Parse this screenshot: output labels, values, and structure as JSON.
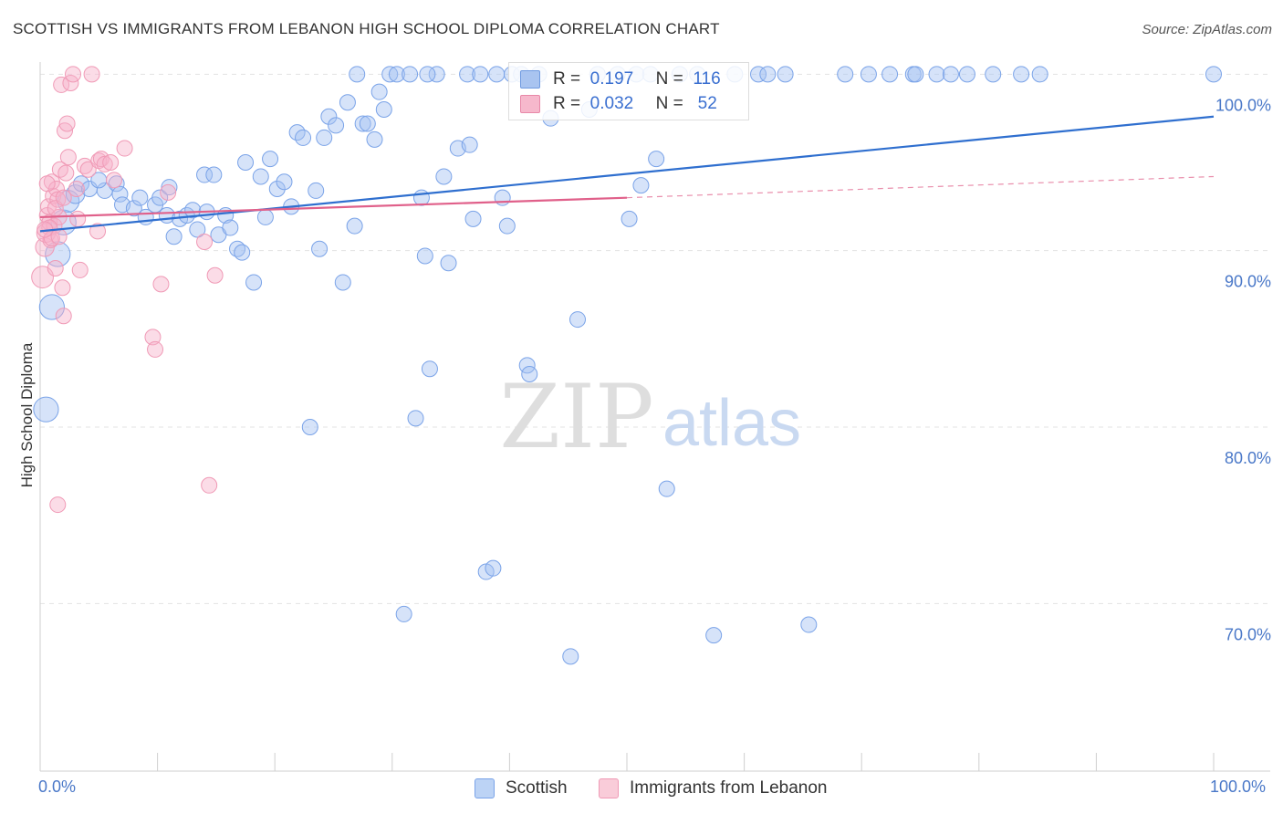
{
  "title": "SCOTTISH VS IMMIGRANTS FROM LEBANON HIGH SCHOOL DIPLOMA CORRELATION CHART",
  "source": "Source: ZipAtlas.com",
  "watermark": {
    "zip": "ZIP",
    "atlas": "atlas"
  },
  "legend": {
    "r_label": "R =",
    "n_label": "N =",
    "rows": [
      {
        "r": "0.197",
        "n": "116",
        "fill": "#a9c4f0",
        "stroke": "#6f9ae0"
      },
      {
        "r": "0.032",
        "n": "52",
        "fill": "#f6b8cc",
        "stroke": "#e888a8"
      }
    ]
  },
  "colors": {
    "scottish": "#7aa3e8",
    "scottish_line": "#2f6fcf",
    "lebanon": "#f09ab6",
    "lebanon_line": "#e0608a",
    "axis_label": "#4a78c8"
  },
  "chart_data": {
    "type": "scatter",
    "title": "SCOTTISH VS IMMIGRANTS FROM LEBANON HIGH SCHOOL DIPLOMA CORRELATION CHART",
    "xlabel": "",
    "ylabel": "High School Diploma",
    "xlim": [
      0,
      100
    ],
    "ylim": [
      60.5,
      101
    ],
    "x_ticks": [
      "0.0%",
      "100.0%"
    ],
    "y_ticks": [
      {
        "value": 100,
        "label": "100.0%"
      },
      {
        "value": 90,
        "label": "90.0%"
      },
      {
        "value": 80,
        "label": "80.0%"
      },
      {
        "value": 70,
        "label": "70.0%"
      }
    ],
    "grid": true,
    "legend_position": "top-center",
    "series": [
      {
        "name": "Scottish",
        "r": 0.197,
        "n": 116,
        "trend": {
          "x": [
            0,
            100
          ],
          "y": [
            91.1,
            97.6
          ]
        },
        "points": [
          [
            0.5,
            81.0,
            16
          ],
          [
            1.0,
            86.8,
            16
          ],
          [
            1.5,
            89.8,
            16
          ],
          [
            2.0,
            91.6,
            16
          ],
          [
            2.4,
            92.8,
            14
          ],
          [
            3.0,
            93.2,
            12
          ],
          [
            3.5,
            93.8,
            10
          ],
          [
            4.2,
            93.5,
            10
          ],
          [
            5.5,
            93.4,
            10
          ],
          [
            5.0,
            94.0,
            10
          ],
          [
            6.5,
            93.8,
            10
          ],
          [
            6.8,
            93.2,
            10
          ],
          [
            7.0,
            92.6,
            10
          ],
          [
            8.0,
            92.4,
            10
          ],
          [
            8.5,
            93.0,
            10
          ],
          [
            9.0,
            91.9,
            10
          ],
          [
            9.8,
            92.6,
            10
          ],
          [
            10.2,
            93.0,
            10
          ],
          [
            10.8,
            92.0,
            10
          ],
          [
            11.0,
            93.6,
            10
          ],
          [
            11.4,
            90.8,
            10
          ],
          [
            11.9,
            91.8,
            10
          ],
          [
            12.5,
            92.0,
            10
          ],
          [
            13.0,
            92.3,
            10
          ],
          [
            13.4,
            91.2,
            10
          ],
          [
            14.0,
            94.3,
            10
          ],
          [
            14.2,
            92.2,
            10
          ],
          [
            14.8,
            94.3,
            10
          ],
          [
            15.2,
            90.9,
            10
          ],
          [
            15.8,
            92.0,
            10
          ],
          [
            16.2,
            91.3,
            10
          ],
          [
            16.8,
            90.1,
            10
          ],
          [
            17.2,
            89.9,
            10
          ],
          [
            17.5,
            95.0,
            10
          ],
          [
            18.2,
            88.2,
            10
          ],
          [
            18.8,
            94.2,
            10
          ],
          [
            19.2,
            91.9,
            10
          ],
          [
            19.6,
            95.2,
            10
          ],
          [
            20.2,
            93.5,
            10
          ],
          [
            20.8,
            93.9,
            10
          ],
          [
            21.4,
            92.5,
            10
          ],
          [
            21.9,
            96.7,
            10
          ],
          [
            22.4,
            96.4,
            10
          ],
          [
            23.0,
            80.0,
            10
          ],
          [
            23.5,
            93.4,
            10
          ],
          [
            23.8,
            90.1,
            10
          ],
          [
            24.2,
            96.4,
            10
          ],
          [
            24.6,
            97.6,
            10
          ],
          [
            25.2,
            97.1,
            10
          ],
          [
            25.8,
            88.2,
            10
          ],
          [
            26.2,
            98.4,
            10
          ],
          [
            26.8,
            91.4,
            10
          ],
          [
            27.5,
            97.2,
            10
          ],
          [
            27.9,
            97.2,
            10
          ],
          [
            28.5,
            96.3,
            10
          ],
          [
            28.9,
            99.0,
            10
          ],
          [
            29.3,
            98.0,
            10
          ],
          [
            29.8,
            100.0,
            10
          ],
          [
            30.4,
            100.0,
            10
          ],
          [
            31.0,
            69.4,
            10
          ],
          [
            31.5,
            100.0,
            10
          ],
          [
            32.0,
            80.5,
            10
          ],
          [
            32.5,
            93.0,
            10
          ],
          [
            32.8,
            89.7,
            10
          ],
          [
            33.2,
            83.3,
            10
          ],
          [
            33.8,
            100.0,
            10
          ],
          [
            34.4,
            94.2,
            10
          ],
          [
            34.8,
            89.3,
            10
          ],
          [
            35.6,
            95.8,
            10
          ],
          [
            36.4,
            100.0,
            10
          ],
          [
            36.6,
            96.0,
            10
          ],
          [
            36.9,
            91.8,
            10
          ],
          [
            37.5,
            100.0,
            10
          ],
          [
            38.0,
            71.8,
            10
          ],
          [
            38.6,
            72.0,
            10
          ],
          [
            38.9,
            100.0,
            10
          ],
          [
            39.4,
            93.0,
            10
          ],
          [
            39.8,
            91.4,
            10
          ],
          [
            40.2,
            100.0,
            10
          ],
          [
            41.0,
            100.0,
            10
          ],
          [
            41.5,
            83.5,
            10
          ],
          [
            41.7,
            83.0,
            10
          ],
          [
            42.5,
            100.0,
            10
          ],
          [
            43.5,
            97.5,
            10
          ],
          [
            45.2,
            67.0,
            10
          ],
          [
            45.8,
            86.1,
            10
          ],
          [
            46.8,
            98.0,
            10
          ],
          [
            47.5,
            100.0,
            10
          ],
          [
            49.2,
            100.0,
            10
          ],
          [
            50.2,
            91.8,
            10
          ],
          [
            50.8,
            100.0,
            10
          ],
          [
            51.2,
            93.7,
            10
          ],
          [
            52.0,
            100.0,
            10
          ],
          [
            52.5,
            95.2,
            10
          ],
          [
            53.4,
            76.5,
            10
          ],
          [
            54.5,
            100.0,
            10
          ],
          [
            56.0,
            100.0,
            10
          ],
          [
            57.4,
            68.2,
            10
          ],
          [
            59.2,
            100.0,
            10
          ],
          [
            61.2,
            100.0,
            10
          ],
          [
            62.0,
            100.0,
            10
          ],
          [
            63.5,
            100.0,
            10
          ],
          [
            65.5,
            68.8,
            10
          ],
          [
            68.6,
            100.0,
            10
          ],
          [
            70.6,
            100.0,
            10
          ],
          [
            72.4,
            100.0,
            10
          ],
          [
            74.4,
            100.0,
            10
          ],
          [
            74.6,
            100.0,
            10
          ],
          [
            76.4,
            100.0,
            10
          ],
          [
            77.6,
            100.0,
            10
          ],
          [
            79.0,
            100.0,
            10
          ],
          [
            81.2,
            100.0,
            10
          ],
          [
            83.6,
            100.0,
            10
          ],
          [
            85.2,
            100.0,
            10
          ],
          [
            100.0,
            100.0,
            10
          ],
          [
            27.0,
            100.0,
            10
          ],
          [
            33.0,
            100.0,
            10
          ]
        ]
      },
      {
        "name": "Immigrants from Lebanon",
        "r": 0.032,
        "n": 52,
        "trend": {
          "x": [
            0,
            50
          ],
          "y": [
            91.9,
            93.0
          ]
        },
        "trend_extension": {
          "x": [
            50,
            100
          ],
          "y": [
            93.0,
            94.2
          ]
        },
        "points": [
          [
            0.2,
            88.5,
            14
          ],
          [
            0.4,
            90.2,
            12
          ],
          [
            0.5,
            91.0,
            12
          ],
          [
            0.6,
            92.0,
            10
          ],
          [
            0.7,
            92.5,
            10
          ],
          [
            0.8,
            91.6,
            10
          ],
          [
            0.9,
            90.6,
            10
          ],
          [
            1.0,
            93.9,
            10
          ],
          [
            1.1,
            93.1,
            10
          ],
          [
            1.2,
            91.4,
            10
          ],
          [
            1.3,
            89.0,
            10
          ],
          [
            1.4,
            93.5,
            10
          ],
          [
            1.5,
            92.9,
            10
          ],
          [
            1.6,
            91.9,
            10
          ],
          [
            1.7,
            94.6,
            10
          ],
          [
            1.8,
            99.4,
            10
          ],
          [
            1.9,
            87.9,
            10
          ],
          [
            2.0,
            86.3,
            10
          ],
          [
            2.1,
            96.8,
            10
          ],
          [
            2.2,
            94.4,
            10
          ],
          [
            2.3,
            97.2,
            10
          ],
          [
            2.4,
            95.3,
            10
          ],
          [
            2.6,
            99.5,
            10
          ],
          [
            2.8,
            100.0,
            10
          ],
          [
            3.1,
            93.5,
            10
          ],
          [
            3.2,
            91.8,
            10
          ],
          [
            3.4,
            88.9,
            10
          ],
          [
            3.8,
            94.8,
            10
          ],
          [
            4.1,
            94.6,
            10
          ],
          [
            4.4,
            100.0,
            10
          ],
          [
            4.9,
            91.1,
            10
          ],
          [
            5.0,
            95.1,
            10
          ],
          [
            5.2,
            95.2,
            10
          ],
          [
            5.5,
            94.9,
            10
          ],
          [
            6.0,
            95.0,
            10
          ],
          [
            6.3,
            94.0,
            10
          ],
          [
            7.2,
            95.8,
            10
          ],
          [
            9.6,
            85.1,
            10
          ],
          [
            9.8,
            84.4,
            10
          ],
          [
            10.3,
            88.1,
            10
          ],
          [
            10.9,
            93.3,
            10
          ],
          [
            14.0,
            90.5,
            10
          ],
          [
            14.4,
            76.7,
            10
          ],
          [
            14.9,
            88.6,
            10
          ],
          [
            1.5,
            75.6,
            10
          ],
          [
            0.6,
            93.8,
            10
          ],
          [
            0.8,
            91.3,
            10
          ],
          [
            1.0,
            90.7,
            10
          ],
          [
            1.3,
            92.4,
            10
          ],
          [
            0.4,
            91.2,
            10
          ],
          [
            1.6,
            90.8,
            10
          ],
          [
            2.0,
            93.0,
            10
          ]
        ]
      }
    ]
  },
  "bottom_legend": [
    {
      "label": "Scottish",
      "fill": "#bcd3f5",
      "stroke": "#7aa3e8"
    },
    {
      "label": "Immigrants from Lebanon",
      "fill": "#f9ccd9",
      "stroke": "#f09ab6"
    }
  ]
}
